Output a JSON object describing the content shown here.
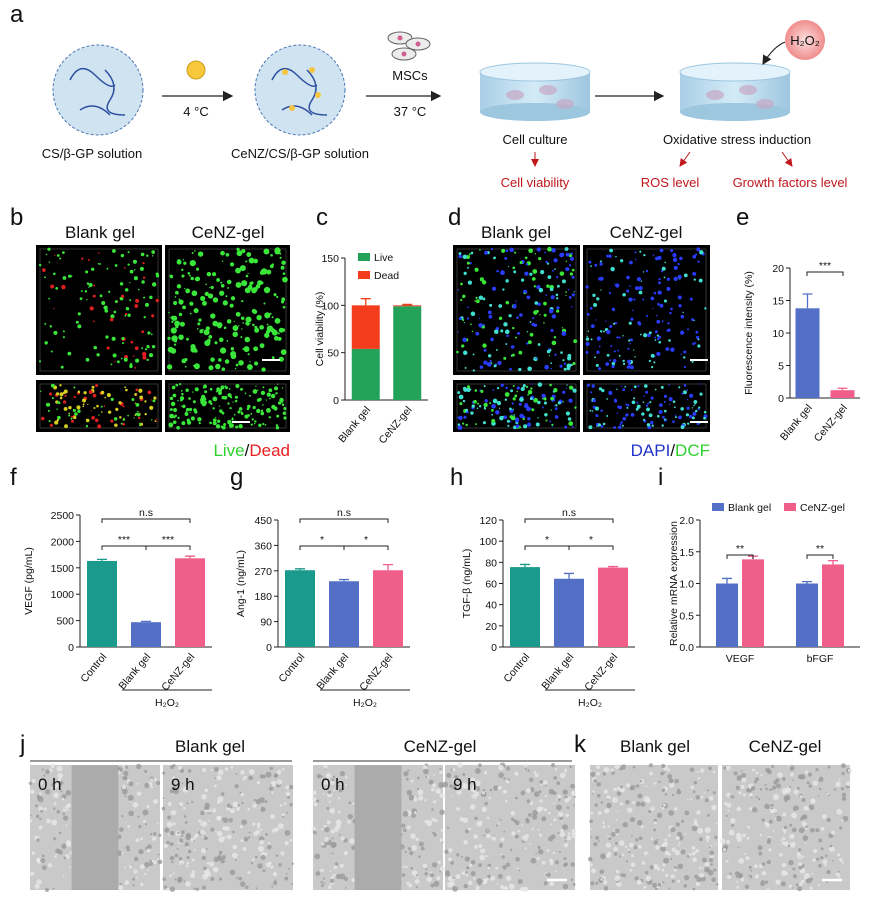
{
  "panel_a": {
    "label": "a",
    "step1": "CS/β-GP solution",
    "cond1": "4 °C",
    "step2": "CeNZ/CS/β-GP solution",
    "cells": "MSCs",
    "cond2": "37 °C",
    "step3": "Cell culture",
    "step4": "Oxidative stress induction",
    "stimulus": "H₂O₂",
    "out1": "Cell viability",
    "out2": "ROS level",
    "out3": "Growth factors level"
  },
  "panel_b": {
    "label": "b",
    "groups": [
      "Blank gel",
      "CeNZ-gel"
    ],
    "stain": [
      "Live",
      "/",
      "Dead"
    ]
  },
  "panel_d": {
    "label": "d",
    "groups": [
      "Blank gel",
      "CeNZ-gel"
    ],
    "stain": [
      "DAPI",
      "/",
      "DCF"
    ]
  },
  "panel_j": {
    "label": "j",
    "groups": [
      "Blank gel",
      "CeNZ-gel"
    ],
    "times": [
      "0 h",
      "9 h",
      "0 h",
      "9 h"
    ]
  },
  "panel_k": {
    "label": "k",
    "groups": [
      "Blank gel",
      "CeNZ-gel"
    ]
  },
  "chart_data": [
    {
      "label": "c",
      "type": "stacked_bar",
      "ylabel": "Cell viability (%)",
      "categories": [
        "Blank gel",
        "CeNZ-gel"
      ],
      "series": [
        {
          "name": "Live",
          "color": "#23a25a",
          "values": [
            54,
            99
          ],
          "errors": [
            5,
            1
          ]
        },
        {
          "name": "Dead",
          "color": "#f23c1c",
          "values": [
            46,
            1
          ],
          "errors": [
            7,
            1
          ]
        }
      ],
      "ylim": [
        0,
        150
      ],
      "yticks": [
        0,
        50,
        100,
        150
      ]
    },
    {
      "label": "e",
      "type": "bar",
      "ylabel": "Fluorescence intensity (%)",
      "categories": [
        "Blank gel",
        "CeNZ-gel"
      ],
      "values": [
        13.8,
        1.2
      ],
      "errors": [
        2.2,
        0.3
      ],
      "colors": [
        "#5470c6",
        "#ef5f8a"
      ],
      "ylim": [
        0,
        20
      ],
      "yticks": [
        0,
        5,
        10,
        15,
        20
      ],
      "annotations": [
        "***"
      ]
    },
    {
      "label": "f",
      "type": "bar",
      "ylabel": "VEGF (pg/mL)",
      "categories": [
        "Control",
        "Blank gel",
        "CeNZ-gel"
      ],
      "values": [
        1630,
        470,
        1680
      ],
      "errors": [
        30,
        15,
        40
      ],
      "colors": [
        "#1a9a8c",
        "#5470c6",
        "#ef5f8a"
      ],
      "ylim": [
        0,
        2500
      ],
      "yticks": [
        0,
        500,
        1000,
        1500,
        2000,
        2500
      ],
      "annotations": [
        "n.s",
        "***",
        "***"
      ],
      "group_label": "H₂O₂"
    },
    {
      "label": "g",
      "type": "bar",
      "ylabel": "Ang-1 (ng/mL)",
      "categories": [
        "Control",
        "Blank gel",
        "CeNZ-gel"
      ],
      "values": [
        272,
        233,
        272
      ],
      "errors": [
        5,
        6,
        20
      ],
      "colors": [
        "#1a9a8c",
        "#5470c6",
        "#ef5f8a"
      ],
      "ylim": [
        0,
        450
      ],
      "yticks": [
        0,
        90,
        180,
        270,
        360,
        450
      ],
      "annotations": [
        "n.s",
        "*",
        "*"
      ],
      "group_label": "H₂O₂"
    },
    {
      "label": "h",
      "type": "bar",
      "ylabel": "TGF-β (ng/mL)",
      "categories": [
        "Control",
        "Blank gel",
        "CeNZ-gel"
      ],
      "values": [
        75.5,
        64.5,
        75
      ],
      "errors": [
        2.5,
        5,
        1
      ],
      "colors": [
        "#1a9a8c",
        "#5470c6",
        "#ef5f8a"
      ],
      "ylim": [
        0,
        120
      ],
      "yticks": [
        0,
        20,
        40,
        60,
        80,
        100,
        120
      ],
      "annotations": [
        "n.s",
        "*",
        "*"
      ],
      "group_label": "H₂O₂"
    },
    {
      "label": "i",
      "type": "grouped_bar",
      "ylabel": "Relative mRNA expression",
      "categories": [
        "VEGF",
        "bFGF"
      ],
      "series": [
        {
          "name": "Blank gel",
          "color": "#5470c6",
          "values": [
            1.0,
            1.0
          ],
          "errors": [
            0.08,
            0.03
          ]
        },
        {
          "name": "CeNZ-gel",
          "color": "#ef5f8a",
          "values": [
            1.38,
            1.3
          ],
          "errors": [
            0.05,
            0.06
          ]
        }
      ],
      "ylim": [
        0,
        2
      ],
      "yticks": [
        {
          "value": 0,
          "label": "0.0"
        },
        0.5,
        {
          "value": 1,
          "label": "1.0"
        },
        1.5,
        {
          "value": 2,
          "label": "2.0"
        }
      ],
      "annotations": [
        "**",
        "**"
      ]
    }
  ]
}
